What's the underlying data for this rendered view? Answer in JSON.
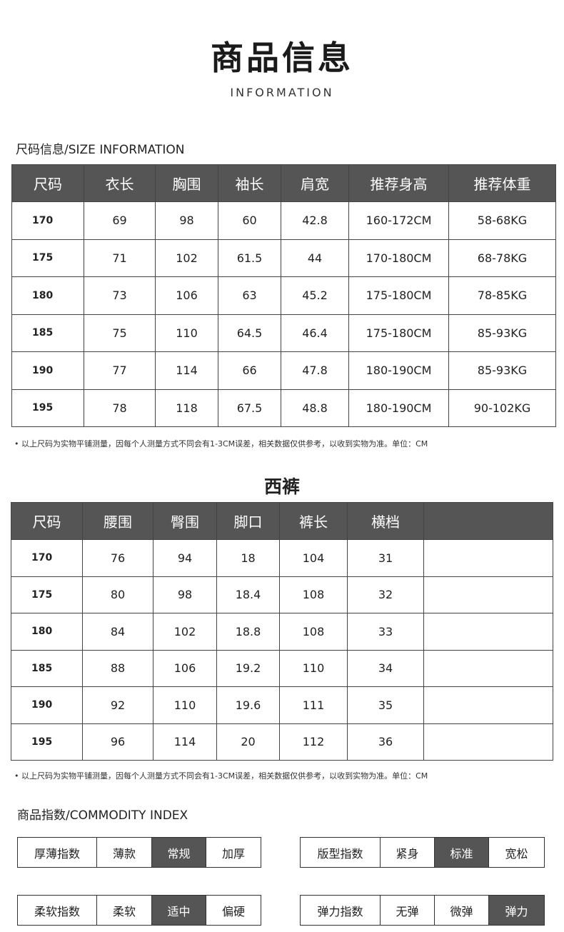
{
  "title": "商品信息",
  "subtitle": "INFORMATION",
  "size_section_label": "尺码信息/SIZE INFORMATION",
  "top_table": {
    "headers": [
      "尺码",
      "衣长",
      "胸围",
      "袖长",
      "肩宽",
      "推荐身高",
      "推荐体重"
    ],
    "rows": [
      [
        "170",
        "69",
        "98",
        "60",
        "42.8",
        "160-172CM",
        "58-68KG"
      ],
      [
        "175",
        "71",
        "102",
        "61.5",
        "44",
        "170-180CM",
        "68-78KG"
      ],
      [
        "180",
        "73",
        "106",
        "63",
        "45.2",
        "175-180CM",
        "78-85KG"
      ],
      [
        "185",
        "75",
        "110",
        "64.5",
        "46.4",
        "175-180CM",
        "85-93KG"
      ],
      [
        "190",
        "77",
        "114",
        "66",
        "47.8",
        "180-190CM",
        "85-93KG"
      ],
      [
        "195",
        "78",
        "118",
        "67.5",
        "48.8",
        "180-190CM",
        "90-102KG"
      ]
    ]
  },
  "note": "• 以上尺码为实物平铺测量，因每个人测量方式不同会有1-3CM误差，相关数据仅供参考，以收到实物为准。单位：CM",
  "pants_title": "西裤",
  "pants_table": {
    "headers": [
      "尺码",
      "腰围",
      "臀围",
      "脚口",
      "裤长",
      "横档",
      ""
    ],
    "rows": [
      [
        "170",
        "76",
        "94",
        "18",
        "104",
        "31",
        ""
      ],
      [
        "175",
        "80",
        "98",
        "18.4",
        "108",
        "32",
        ""
      ],
      [
        "180",
        "84",
        "102",
        "18.8",
        "108",
        "33",
        ""
      ],
      [
        "185",
        "88",
        "106",
        "19.2",
        "110",
        "34",
        ""
      ],
      [
        "190",
        "92",
        "110",
        "19.6",
        "111",
        "35",
        ""
      ],
      [
        "195",
        "96",
        "114",
        "20",
        "112",
        "36",
        ""
      ]
    ]
  },
  "note2": "• 以上尺码为实物平铺测量，因每个人测量方式不同会有1-3CM误差，相关数据仅供参考，以收到实物为准。单位：CM",
  "index_section_label": "商品指数/COMMODITY INDEX",
  "indices": [
    {
      "label": "厚薄指数",
      "options": [
        "薄款",
        "常规",
        "加厚"
      ],
      "selected": "常规"
    },
    {
      "label": "版型指数",
      "options": [
        "紧身",
        "标准",
        "宽松"
      ],
      "selected": "标准"
    },
    {
      "label": "柔软指数",
      "options": [
        "柔软",
        "适中",
        "偏硬"
      ],
      "selected": "适中"
    },
    {
      "label": "弹力指数",
      "options": [
        "无弹",
        "微弹",
        "弹力"
      ],
      "selected": "弹力"
    }
  ],
  "colors": {
    "header_bg": "#555555",
    "selected_bg": "#555555"
  }
}
